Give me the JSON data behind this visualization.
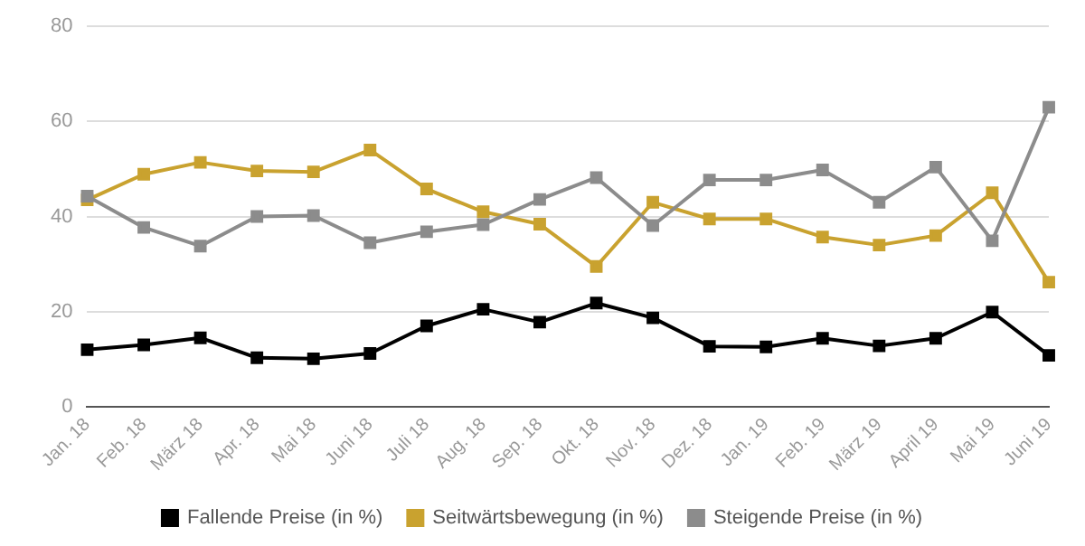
{
  "chart_data": {
    "type": "line",
    "categories": [
      "Jan. 18",
      "Feb. 18",
      "März 18",
      "Apr. 18",
      "Mai 18",
      "Juni 18",
      "Juli 18",
      "Aug. 18",
      "Sep. 18",
      "Okt. 18",
      "Nov. 18",
      "Dez. 18",
      "Jan. 19",
      "Feb. 19",
      "März 19",
      "April 19",
      "Mai 19",
      "Juni 19"
    ],
    "series": [
      {
        "name": "Fallende Preise (in %)",
        "color": "#000000",
        "values": [
          12,
          13,
          14.5,
          10.3,
          10.1,
          11.2,
          17,
          20.5,
          17.8,
          21.8,
          18.7,
          12.7,
          12.6,
          14.4,
          12.8,
          14.4,
          19.9,
          10.8
        ]
      },
      {
        "name": "Seitwärtsbewegung (in %)",
        "color": "#c9a22f",
        "values": [
          43.5,
          48.9,
          51.4,
          49.6,
          49.4,
          54,
          45.8,
          41,
          38.4,
          29.5,
          43,
          39.5,
          39.5,
          35.7,
          34,
          36,
          45,
          26.2
        ]
      },
      {
        "name": "Steigende Preise (in %)",
        "color": "#8c8c8c",
        "values": [
          44.3,
          37.7,
          33.8,
          40,
          40.2,
          34.5,
          36.8,
          38.3,
          43.6,
          48.2,
          38.1,
          47.7,
          47.7,
          49.8,
          43,
          50.4,
          34.9,
          63
        ]
      }
    ],
    "ylim": [
      0,
      80
    ],
    "yticks": [
      0,
      20,
      40,
      60,
      80
    ],
    "grid": "y",
    "legend": "bottom",
    "marker": "square",
    "line_style": "solid"
  }
}
